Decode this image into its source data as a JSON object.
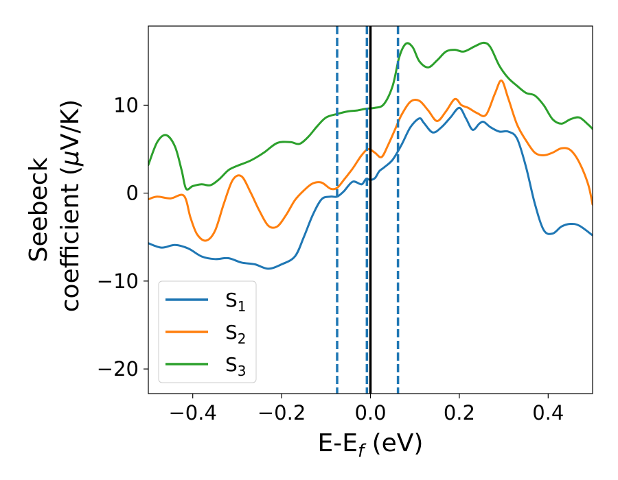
{
  "chart_data": {
    "type": "line",
    "xlabel": "E-E",
    "xlabel_sub": "f",
    "xlabel_unit": " (eV)",
    "ylabel_line1": "Seebeck",
    "ylabel_line2_a": "coefficient  (",
    "ylabel_mu": "μ",
    "ylabel_line2_b": "V/K)",
    "xlim": [
      -0.5,
      0.5
    ],
    "ylim": [
      -22.8,
      19
    ],
    "xticks": [
      -0.4,
      -0.2,
      0.0,
      0.2,
      0.4
    ],
    "xtick_labels": [
      "−0.4",
      "−0.2",
      "0.0",
      "0.2",
      "0.4"
    ],
    "yticks": [
      -20,
      -10,
      0,
      10
    ],
    "ytick_labels": [
      "−20",
      "−10",
      "0",
      "10"
    ],
    "grid": false,
    "legend_position": "lower-left",
    "vertical_lines": [
      {
        "x": -0.075,
        "style": "dashed",
        "color": "#1f77b4"
      },
      {
        "x": -0.008,
        "style": "dashed",
        "color": "#1f77b4"
      },
      {
        "x": 0.0,
        "style": "solid",
        "color": "#000000"
      },
      {
        "x": 0.062,
        "style": "dashed",
        "color": "#1f77b4"
      }
    ],
    "series": [
      {
        "name": "S",
        "sub": "1",
        "color": "#1f77b4",
        "points": [
          [
            -0.5,
            -5.7
          ],
          [
            -0.47,
            -6.2
          ],
          [
            -0.44,
            -5.9
          ],
          [
            -0.41,
            -6.3
          ],
          [
            -0.38,
            -7.2
          ],
          [
            -0.35,
            -7.5
          ],
          [
            -0.32,
            -7.4
          ],
          [
            -0.29,
            -7.9
          ],
          [
            -0.26,
            -8.1
          ],
          [
            -0.23,
            -8.6
          ],
          [
            -0.2,
            -8.1
          ],
          [
            -0.17,
            -7.2
          ],
          [
            -0.15,
            -5.0
          ],
          [
            -0.13,
            -2.5
          ],
          [
            -0.11,
            -0.7
          ],
          [
            -0.09,
            -0.4
          ],
          [
            -0.075,
            -0.4
          ],
          [
            -0.06,
            0.2
          ],
          [
            -0.04,
            1.3
          ],
          [
            -0.02,
            1.0
          ],
          [
            -0.01,
            1.6
          ],
          [
            0.0,
            1.5
          ],
          [
            0.01,
            1.7
          ],
          [
            0.02,
            2.5
          ],
          [
            0.03,
            2.9
          ],
          [
            0.05,
            3.8
          ],
          [
            0.07,
            5.5
          ],
          [
            0.09,
            7.5
          ],
          [
            0.11,
            8.5
          ],
          [
            0.12,
            8.0
          ],
          [
            0.14,
            6.9
          ],
          [
            0.16,
            7.5
          ],
          [
            0.18,
            8.6
          ],
          [
            0.2,
            9.7
          ],
          [
            0.215,
            8.5
          ],
          [
            0.23,
            7.2
          ],
          [
            0.245,
            7.9
          ],
          [
            0.255,
            8.1
          ],
          [
            0.27,
            7.5
          ],
          [
            0.29,
            7.0
          ],
          [
            0.31,
            7.0
          ],
          [
            0.33,
            6.2
          ],
          [
            0.35,
            3.0
          ],
          [
            0.37,
            -1.2
          ],
          [
            0.39,
            -4.2
          ],
          [
            0.41,
            -4.6
          ],
          [
            0.43,
            -3.8
          ],
          [
            0.45,
            -3.5
          ],
          [
            0.47,
            -3.7
          ],
          [
            0.5,
            -4.8
          ]
        ]
      },
      {
        "name": "S",
        "sub": "2",
        "color": "#ff7f0e",
        "points": [
          [
            -0.5,
            -0.7
          ],
          [
            -0.48,
            -0.4
          ],
          [
            -0.45,
            -0.6
          ],
          [
            -0.42,
            -0.3
          ],
          [
            -0.405,
            -2.8
          ],
          [
            -0.39,
            -4.7
          ],
          [
            -0.37,
            -5.4
          ],
          [
            -0.35,
            -4.3
          ],
          [
            -0.33,
            -1.2
          ],
          [
            -0.31,
            1.5
          ],
          [
            -0.29,
            1.9
          ],
          [
            -0.27,
            0.1
          ],
          [
            -0.25,
            -2.0
          ],
          [
            -0.23,
            -3.7
          ],
          [
            -0.21,
            -3.8
          ],
          [
            -0.19,
            -2.5
          ],
          [
            -0.17,
            -0.8
          ],
          [
            -0.15,
            0.3
          ],
          [
            -0.13,
            1.1
          ],
          [
            -0.11,
            1.2
          ],
          [
            -0.09,
            0.5
          ],
          [
            -0.075,
            0.6
          ],
          [
            -0.06,
            1.5
          ],
          [
            -0.04,
            2.8
          ],
          [
            -0.02,
            4.3
          ],
          [
            -0.005,
            5.0
          ],
          [
            0.01,
            4.6
          ],
          [
            0.025,
            4.1
          ],
          [
            0.04,
            5.5
          ],
          [
            0.055,
            7.2
          ],
          [
            0.07,
            8.9
          ],
          [
            0.09,
            10.4
          ],
          [
            0.11,
            10.5
          ],
          [
            0.13,
            9.4
          ],
          [
            0.15,
            8.2
          ],
          [
            0.17,
            9.3
          ],
          [
            0.19,
            10.7
          ],
          [
            0.205,
            10.0
          ],
          [
            0.22,
            9.7
          ],
          [
            0.24,
            9.1
          ],
          [
            0.26,
            8.9
          ],
          [
            0.28,
            11.3
          ],
          [
            0.295,
            12.8
          ],
          [
            0.31,
            10.8
          ],
          [
            0.33,
            7.8
          ],
          [
            0.35,
            6.0
          ],
          [
            0.37,
            4.6
          ],
          [
            0.39,
            4.3
          ],
          [
            0.41,
            4.6
          ],
          [
            0.43,
            5.1
          ],
          [
            0.45,
            4.9
          ],
          [
            0.47,
            3.5
          ],
          [
            0.49,
            1.0
          ],
          [
            0.5,
            -1.3
          ]
        ]
      },
      {
        "name": "S",
        "sub": "3",
        "color": "#2ca02c",
        "points": [
          [
            -0.5,
            3.2
          ],
          [
            -0.48,
            5.8
          ],
          [
            -0.46,
            6.6
          ],
          [
            -0.44,
            5.3
          ],
          [
            -0.425,
            2.6
          ],
          [
            -0.415,
            0.5
          ],
          [
            -0.4,
            0.8
          ],
          [
            -0.38,
            1.0
          ],
          [
            -0.36,
            0.9
          ],
          [
            -0.34,
            1.6
          ],
          [
            -0.32,
            2.6
          ],
          [
            -0.3,
            3.1
          ],
          [
            -0.27,
            3.7
          ],
          [
            -0.24,
            4.6
          ],
          [
            -0.21,
            5.7
          ],
          [
            -0.18,
            5.8
          ],
          [
            -0.16,
            5.6
          ],
          [
            -0.14,
            6.4
          ],
          [
            -0.12,
            7.6
          ],
          [
            -0.1,
            8.6
          ],
          [
            -0.075,
            9.0
          ],
          [
            -0.05,
            9.3
          ],
          [
            -0.03,
            9.4
          ],
          [
            -0.01,
            9.6
          ],
          [
            0.01,
            9.7
          ],
          [
            0.03,
            10.1
          ],
          [
            0.05,
            12.2
          ],
          [
            0.065,
            15.5
          ],
          [
            0.08,
            17.0
          ],
          [
            0.095,
            16.6
          ],
          [
            0.11,
            15.0
          ],
          [
            0.13,
            14.3
          ],
          [
            0.15,
            15.1
          ],
          [
            0.17,
            16.1
          ],
          [
            0.19,
            16.3
          ],
          [
            0.21,
            16.1
          ],
          [
            0.235,
            16.7
          ],
          [
            0.255,
            17.1
          ],
          [
            0.27,
            16.6
          ],
          [
            0.29,
            14.5
          ],
          [
            0.31,
            13.1
          ],
          [
            0.33,
            12.2
          ],
          [
            0.35,
            11.4
          ],
          [
            0.37,
            11.1
          ],
          [
            0.39,
            10.0
          ],
          [
            0.41,
            8.4
          ],
          [
            0.43,
            7.9
          ],
          [
            0.45,
            8.4
          ],
          [
            0.47,
            8.6
          ],
          [
            0.49,
            7.8
          ],
          [
            0.5,
            7.3
          ]
        ]
      }
    ]
  }
}
